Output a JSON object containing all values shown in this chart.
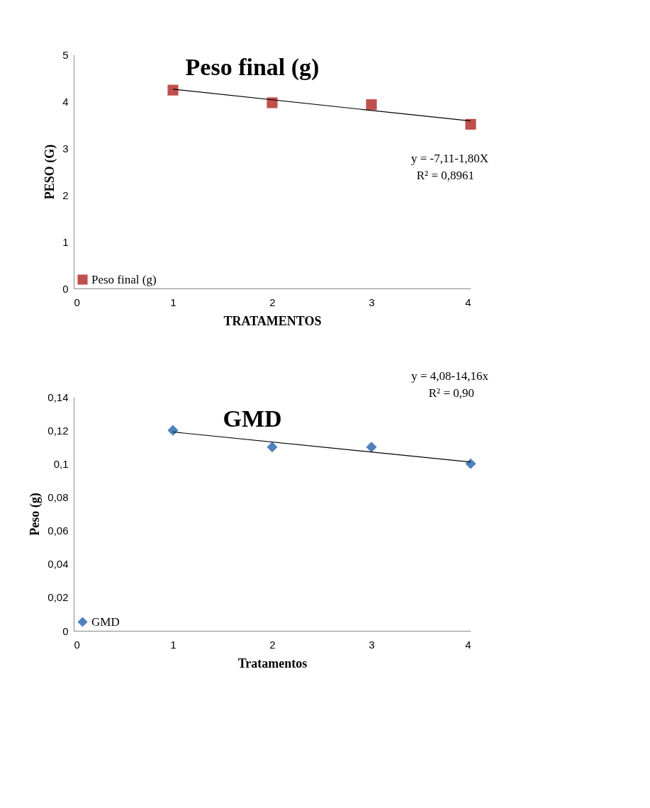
{
  "chart_data": [
    {
      "type": "scatter",
      "title": "Peso final (g)",
      "xlabel": "TRATAMENTOS",
      "ylabel": "PESO (G)",
      "series": [
        {
          "name": "Peso final (g)",
          "color": "#c0504d",
          "marker": "square",
          "x": [
            1,
            2,
            3,
            4
          ],
          "values": [
            4.24,
            3.97,
            3.93,
            3.51
          ]
        },
        {
          "type": "line",
          "color": "#000000",
          "marker": "none",
          "x": [
            1,
            4
          ],
          "values": [
            4.26,
            3.58
          ]
        }
      ],
      "xlim": [
        0,
        4
      ],
      "xticks": [
        0,
        1,
        2,
        3,
        4
      ],
      "ylim": [
        0,
        5
      ],
      "yticks": [
        0,
        1,
        2,
        3,
        4,
        5
      ],
      "annotations": [
        "y = -7,11-1,80X",
        "R² = 0,8961"
      ],
      "grid": false,
      "legend": "bottom left"
    },
    {
      "type": "scatter",
      "title": "GMD",
      "xlabel": "Tratamentos",
      "ylabel": "Peso (g)",
      "series": [
        {
          "name": "GMD",
          "color": "#4f81bd",
          "marker": "diamond",
          "x": [
            1,
            2,
            3,
            4
          ],
          "values": [
            0.12,
            0.11,
            0.11,
            0.1
          ]
        },
        {
          "type": "line",
          "color": "#000000",
          "marker": "none",
          "x": [
            1,
            4
          ],
          "values": [
            0.119,
            0.101
          ]
        }
      ],
      "xlim": [
        0,
        4
      ],
      "xticks": [
        0,
        1,
        2,
        3,
        4
      ],
      "ylim": [
        0,
        0.14
      ],
      "yticks": [
        0,
        {
          "value": 0.02,
          "label": "0,02"
        },
        {
          "value": 0.04,
          "label": "0,04"
        },
        {
          "value": 0.06,
          "label": "0,06"
        },
        {
          "value": 0.08,
          "label": "0,08"
        },
        {
          "value": 0.1,
          "label": "0,1"
        },
        {
          "value": 0.12,
          "label": "0,12"
        },
        {
          "value": 0.14,
          "label": "0,14"
        }
      ],
      "annotations": [
        "y = 4,08-14,16x",
        "R² = 0,90"
      ],
      "grid": false,
      "legend": "bottom left"
    }
  ]
}
